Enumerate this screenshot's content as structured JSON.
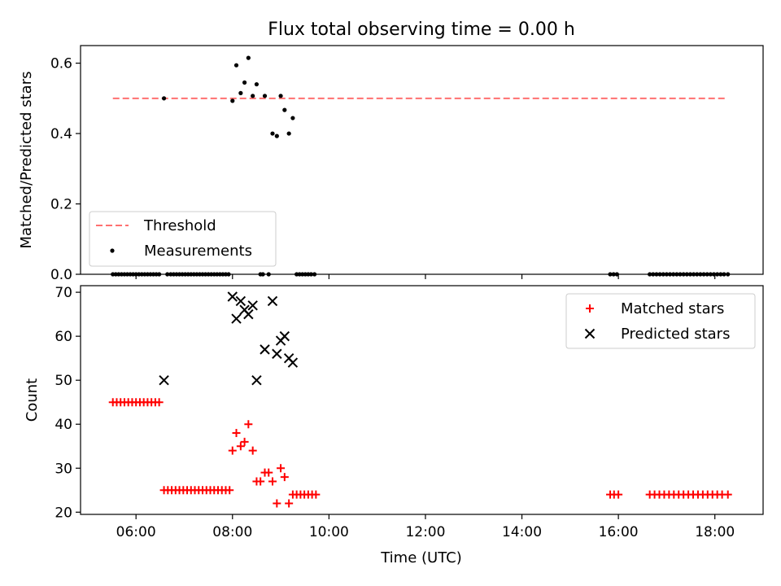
{
  "title": "Flux total observing time = 0.00 h",
  "colors": {
    "threshold": "#ff7070",
    "measurement": "#000000",
    "matched": "#ff0000",
    "predicted": "#000000",
    "axis": "#000000",
    "background": "#ffffff"
  },
  "chart_data": [
    {
      "type": "scatter",
      "panel": "top",
      "ylabel": "Matched/Predicted stars",
      "xlim": [
        4.85,
        19.0
      ],
      "ylim": [
        0,
        0.65
      ],
      "yticks": [
        0.0,
        0.2,
        0.4,
        0.6
      ],
      "ytick_labels": [
        "0.0",
        "0.2",
        "0.4",
        "0.6"
      ],
      "grid": false,
      "legend": {
        "placement": "lower left",
        "entries": [
          "Threshold",
          "Measurements"
        ]
      },
      "threshold": {
        "name": "Threshold",
        "style": "dashed",
        "x": [
          5.52,
          18.27
        ],
        "y": 0.5
      },
      "series": [
        {
          "name": "Measurements",
          "marker": "dot",
          "points": [
            [
              5.52,
              0
            ],
            [
              5.58,
              0
            ],
            [
              5.64,
              0
            ],
            [
              5.7,
              0
            ],
            [
              5.76,
              0
            ],
            [
              5.82,
              0
            ],
            [
              5.88,
              0
            ],
            [
              5.94,
              0
            ],
            [
              6.0,
              0
            ],
            [
              6.06,
              0
            ],
            [
              6.12,
              0
            ],
            [
              6.18,
              0
            ],
            [
              6.24,
              0
            ],
            [
              6.3,
              0
            ],
            [
              6.36,
              0
            ],
            [
              6.42,
              0
            ],
            [
              6.48,
              0
            ],
            [
              6.58,
              0.5
            ],
            [
              6.65,
              0
            ],
            [
              6.72,
              0
            ],
            [
              6.78,
              0
            ],
            [
              6.84,
              0
            ],
            [
              6.9,
              0
            ],
            [
              6.96,
              0
            ],
            [
              7.02,
              0
            ],
            [
              7.08,
              0
            ],
            [
              7.14,
              0
            ],
            [
              7.2,
              0
            ],
            [
              7.26,
              0
            ],
            [
              7.32,
              0
            ],
            [
              7.38,
              0
            ],
            [
              7.44,
              0
            ],
            [
              7.5,
              0
            ],
            [
              7.56,
              0
            ],
            [
              7.62,
              0
            ],
            [
              7.68,
              0
            ],
            [
              7.74,
              0
            ],
            [
              7.8,
              0
            ],
            [
              7.86,
              0
            ],
            [
              7.92,
              0
            ],
            [
              8.0,
              0.493
            ],
            [
              8.08,
              0.594
            ],
            [
              8.17,
              0.515
            ],
            [
              8.25,
              0.545
            ],
            [
              8.33,
              0.615
            ],
            [
              8.42,
              0.507
            ],
            [
              8.5,
              0.54
            ],
            [
              8.58,
              0
            ],
            [
              8.63,
              0
            ],
            [
              8.67,
              0.507
            ],
            [
              8.75,
              0
            ],
            [
              8.83,
              0.4
            ],
            [
              8.92,
              0.393
            ],
            [
              9.0,
              0.507
            ],
            [
              9.08,
              0.467
            ],
            [
              9.17,
              0.4
            ],
            [
              9.25,
              0.444
            ],
            [
              9.33,
              0
            ],
            [
              9.39,
              0
            ],
            [
              9.45,
              0
            ],
            [
              9.51,
              0
            ],
            [
              9.57,
              0
            ],
            [
              9.63,
              0
            ],
            [
              9.7,
              0
            ],
            [
              15.83,
              0
            ],
            [
              15.9,
              0
            ],
            [
              15.97,
              0
            ],
            [
              16.65,
              0
            ],
            [
              16.72,
              0
            ],
            [
              16.79,
              0
            ],
            [
              16.86,
              0
            ],
            [
              16.93,
              0
            ],
            [
              17.0,
              0
            ],
            [
              17.07,
              0
            ],
            [
              17.14,
              0
            ],
            [
              17.21,
              0
            ],
            [
              17.28,
              0
            ],
            [
              17.35,
              0
            ],
            [
              17.42,
              0
            ],
            [
              17.49,
              0
            ],
            [
              17.56,
              0
            ],
            [
              17.63,
              0
            ],
            [
              17.7,
              0
            ],
            [
              17.77,
              0
            ],
            [
              17.84,
              0
            ],
            [
              17.91,
              0
            ],
            [
              17.98,
              0
            ],
            [
              18.05,
              0
            ],
            [
              18.12,
              0
            ],
            [
              18.19,
              0
            ],
            [
              18.27,
              0
            ]
          ]
        }
      ]
    },
    {
      "type": "scatter",
      "panel": "bottom",
      "xlabel": "Time (UTC)",
      "ylabel": "Count",
      "xlim": [
        4.85,
        19.0
      ],
      "ylim": [
        19.5,
        71.5
      ],
      "xticks": [
        6,
        8,
        10,
        12,
        14,
        16,
        18
      ],
      "xtick_labels": [
        "06:00",
        "08:00",
        "10:00",
        "12:00",
        "14:00",
        "16:00",
        "18:00"
      ],
      "yticks": [
        20,
        30,
        40,
        50,
        60,
        70
      ],
      "ytick_labels": [
        "20",
        "30",
        "40",
        "50",
        "60",
        "70"
      ],
      "grid": false,
      "legend": {
        "placement": "upper right",
        "entries": [
          "Matched stars",
          "Predicted stars"
        ]
      },
      "series": [
        {
          "name": "Matched stars",
          "marker": "plus",
          "points": [
            [
              5.52,
              45
            ],
            [
              5.6,
              45
            ],
            [
              5.68,
              45
            ],
            [
              5.76,
              45
            ],
            [
              5.84,
              45
            ],
            [
              5.92,
              45
            ],
            [
              6.0,
              45
            ],
            [
              6.08,
              45
            ],
            [
              6.16,
              45
            ],
            [
              6.24,
              45
            ],
            [
              6.32,
              45
            ],
            [
              6.4,
              45
            ],
            [
              6.48,
              45
            ],
            [
              6.58,
              25
            ],
            [
              6.66,
              25
            ],
            [
              6.74,
              25
            ],
            [
              6.82,
              25
            ],
            [
              6.9,
              25
            ],
            [
              6.98,
              25
            ],
            [
              7.06,
              25
            ],
            [
              7.14,
              25
            ],
            [
              7.22,
              25
            ],
            [
              7.3,
              25
            ],
            [
              7.38,
              25
            ],
            [
              7.46,
              25
            ],
            [
              7.54,
              25
            ],
            [
              7.62,
              25
            ],
            [
              7.7,
              25
            ],
            [
              7.78,
              25
            ],
            [
              7.86,
              25
            ],
            [
              7.94,
              25
            ],
            [
              8.0,
              34
            ],
            [
              8.08,
              38
            ],
            [
              8.17,
              35
            ],
            [
              8.25,
              36
            ],
            [
              8.33,
              40
            ],
            [
              8.42,
              34
            ],
            [
              8.5,
              27
            ],
            [
              8.58,
              27
            ],
            [
              8.67,
              29
            ],
            [
              8.75,
              29
            ],
            [
              8.83,
              27
            ],
            [
              8.92,
              22
            ],
            [
              9.0,
              30
            ],
            [
              9.08,
              28
            ],
            [
              9.17,
              22
            ],
            [
              9.25,
              24
            ],
            [
              9.33,
              24
            ],
            [
              9.41,
              24
            ],
            [
              9.49,
              24
            ],
            [
              9.57,
              24
            ],
            [
              9.65,
              24
            ],
            [
              9.73,
              24
            ],
            [
              15.83,
              24
            ],
            [
              15.91,
              24
            ],
            [
              16.0,
              24
            ],
            [
              16.65,
              24
            ],
            [
              16.75,
              24
            ],
            [
              16.85,
              24
            ],
            [
              16.95,
              24
            ],
            [
              17.05,
              24
            ],
            [
              17.15,
              24
            ],
            [
              17.25,
              24
            ],
            [
              17.35,
              24
            ],
            [
              17.45,
              24
            ],
            [
              17.55,
              24
            ],
            [
              17.65,
              24
            ],
            [
              17.75,
              24
            ],
            [
              17.85,
              24
            ],
            [
              17.95,
              24
            ],
            [
              18.05,
              24
            ],
            [
              18.15,
              24
            ],
            [
              18.27,
              24
            ]
          ]
        },
        {
          "name": "Predicted stars",
          "marker": "x",
          "points": [
            [
              6.58,
              50
            ],
            [
              8.0,
              69
            ],
            [
              8.08,
              64
            ],
            [
              8.17,
              68
            ],
            [
              8.25,
              66
            ],
            [
              8.33,
              65
            ],
            [
              8.42,
              67
            ],
            [
              8.5,
              50
            ],
            [
              8.67,
              57
            ],
            [
              8.83,
              68
            ],
            [
              8.92,
              56
            ],
            [
              9.0,
              59
            ],
            [
              9.08,
              60
            ],
            [
              9.17,
              55
            ],
            [
              9.25,
              54
            ]
          ]
        }
      ]
    }
  ]
}
